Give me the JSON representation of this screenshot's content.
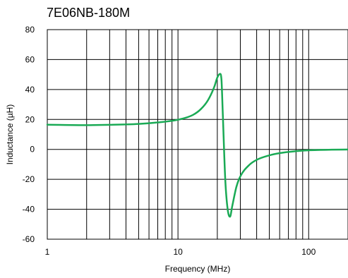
{
  "chart_data": {
    "type": "line",
    "title": "7E06NB-180M",
    "xlabel": "Frequency (MHz)",
    "ylabel": "Inductance (µH)",
    "x_scale": "log",
    "xlim": [
      1,
      200
    ],
    "ylim": [
      -60,
      80
    ],
    "x_ticks": [
      1,
      10,
      100
    ],
    "x_tick_labels": [
      "1",
      "10",
      "100"
    ],
    "y_ticks": [
      -60,
      -40,
      -20,
      0,
      20,
      40,
      60,
      80
    ],
    "y_tick_labels": [
      "-60",
      "-40",
      "-20",
      "0",
      "20",
      "40",
      "60",
      "80"
    ],
    "grid": true,
    "line_color": "#1aaa55",
    "series": [
      {
        "x": [
          1,
          2,
          3,
          5,
          7,
          10,
          13,
          15,
          17,
          19,
          20,
          21,
          21.5,
          22,
          23,
          24,
          25,
          26,
          28,
          30,
          35,
          40,
          50,
          60,
          80,
          100,
          150,
          200
        ],
        "y": [
          16.5,
          16.2,
          16.4,
          17.0,
          18.0,
          19.8,
          23.0,
          27.0,
          33.0,
          42.0,
          48.0,
          50.5,
          47.0,
          25.0,
          -20.0,
          -40.0,
          -45.0,
          -38.0,
          -25.0,
          -18.0,
          -10.5,
          -7.0,
          -4.0,
          -2.5,
          -1.2,
          -0.6,
          -0.2,
          -0.1
        ]
      }
    ]
  }
}
